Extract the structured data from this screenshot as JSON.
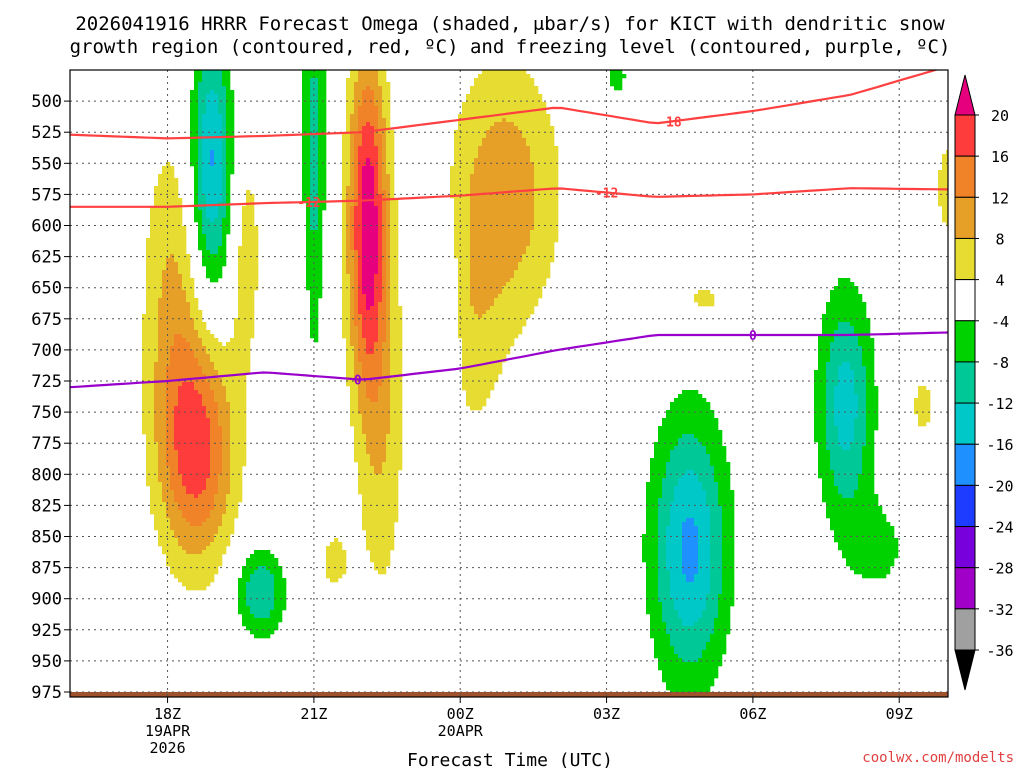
{
  "chart_data": {
    "type": "heatmap",
    "title_line1": "2026041916 HRRR Forecast Omega (shaded, μbar/s) for KICT with dendritic snow",
    "title_line2": "growth region (contoured, red, ºC) and freezing level (contoured, purple, ºC)",
    "xlabel": "Forecast Time (UTC)",
    "credit": "coolwx.com/modelts",
    "y_axis": {
      "unit": "hPa",
      "range": [
        975,
        475
      ],
      "inverted": true,
      "ticks": [
        500,
        525,
        550,
        575,
        600,
        625,
        650,
        675,
        700,
        725,
        750,
        775,
        800,
        825,
        850,
        875,
        900,
        925,
        950,
        975
      ]
    },
    "x_axis": {
      "unit": "hours after 2026-04-19 16Z",
      "range": [
        0,
        18
      ],
      "ticks": [
        {
          "hour": 2,
          "line1": "18Z",
          "line2": "19APR",
          "line3": "2026"
        },
        {
          "hour": 5,
          "line1": "21Z",
          "line2": "",
          "line3": ""
        },
        {
          "hour": 8,
          "line1": "00Z",
          "line2": "20APR",
          "line3": ""
        },
        {
          "hour": 11,
          "line1": "03Z",
          "line2": "",
          "line3": ""
        },
        {
          "hour": 14,
          "line1": "06Z",
          "line2": "",
          "line3": ""
        },
        {
          "hour": 17,
          "line1": "09Z",
          "line2": "",
          "line3": ""
        }
      ]
    },
    "colorbar": {
      "levels": [
        20,
        16,
        12,
        8,
        4,
        -4,
        -8,
        -12,
        -16,
        -20,
        -24,
        -28,
        -32,
        -36
      ],
      "bins": [
        {
          "range": [
            20,
            99
          ],
          "color": "#e6007e"
        },
        {
          "range": [
            16,
            20
          ],
          "color": "#ff3c3c"
        },
        {
          "range": [
            12,
            16
          ],
          "color": "#f08228"
        },
        {
          "range": [
            8,
            12
          ],
          "color": "#e6a028"
        },
        {
          "range": [
            4,
            8
          ],
          "color": "#e6dc32"
        },
        {
          "range": [
            -4,
            4
          ],
          "color": "#ffffff"
        },
        {
          "range": [
            -8,
            -4
          ],
          "color": "#00d200"
        },
        {
          "range": [
            -12,
            -8
          ],
          "color": "#00c896"
        },
        {
          "range": [
            -16,
            -12
          ],
          "color": "#00c8c8"
        },
        {
          "range": [
            -20,
            -16
          ],
          "color": "#1e90ff"
        },
        {
          "range": [
            -24,
            -20
          ],
          "color": "#1e3cff"
        },
        {
          "range": [
            -28,
            -24
          ],
          "color": "#7800dc"
        },
        {
          "range": [
            -32,
            -28
          ],
          "color": "#a000c8"
        },
        {
          "range": [
            -36,
            -32
          ],
          "color": "#a0a0a0"
        },
        {
          "range": [
            -99,
            -36
          ],
          "color": "#000000"
        }
      ]
    },
    "omega_features": [
      {
        "hour": 2.6,
        "p": 780,
        "sx": 0.55,
        "sp": 65,
        "amp": 18
      },
      {
        "hour": 2.1,
        "p": 650,
        "sx": 0.45,
        "sp": 90,
        "amp": 8
      },
      {
        "hour": 3.6,
        "p": 620,
        "sx": 0.25,
        "sp": 70,
        "amp": 6
      },
      {
        "hour": 6.1,
        "p": 595,
        "sx": 0.28,
        "sp": 95,
        "amp": 22
      },
      {
        "hour": 6.4,
        "p": 760,
        "sx": 0.35,
        "sp": 110,
        "amp": 7
      },
      {
        "hour": 8.9,
        "p": 575,
        "sx": 0.8,
        "sp": 75,
        "amp": 11
      },
      {
        "hour": 8.2,
        "p": 700,
        "sx": 0.5,
        "sp": 60,
        "amp": 5
      },
      {
        "hour": 5.4,
        "p": 870,
        "sx": 0.3,
        "sp": 25,
        "amp": 5
      },
      {
        "hour": 4.9,
        "p": 650,
        "sx": 0.4,
        "sp": 70,
        "amp": 3
      },
      {
        "hour": 17.5,
        "p": 745,
        "sx": 0.25,
        "sp": 25,
        "amp": 5
      },
      {
        "hour": 13.0,
        "p": 660,
        "sx": 0.4,
        "sp": 14,
        "amp": 5
      },
      {
        "hour": 18.0,
        "p": 570,
        "sx": 0.2,
        "sp": 35,
        "amp": 6
      },
      {
        "hour": 2.9,
        "p": 550,
        "sx": 0.3,
        "sp": 75,
        "amp": -17
      },
      {
        "hour": 5.0,
        "p": 570,
        "sx": 0.18,
        "sp": 120,
        "amp": -11
      },
      {
        "hour": 3.9,
        "p": 895,
        "sx": 0.35,
        "sp": 25,
        "amp": -12
      },
      {
        "hour": 12.7,
        "p": 860,
        "sx": 0.55,
        "sp": 75,
        "amp": -17
      },
      {
        "hour": 15.9,
        "p": 745,
        "sx": 0.4,
        "sp": 65,
        "amp": -14
      },
      {
        "hour": 7.8,
        "p": 725,
        "sx": 0.14,
        "sp": 75,
        "amp": -7
      },
      {
        "hour": 16.6,
        "p": 860,
        "sx": 0.5,
        "sp": 30,
        "amp": -5
      },
      {
        "hour": 11.2,
        "p": 480,
        "sx": 0.25,
        "sp": 18,
        "amp": -5
      }
    ],
    "contours": [
      {
        "name": "-18",
        "label": "-18",
        "color": "#ff4040",
        "hours": [
          0,
          2,
          4,
          6,
          8,
          10,
          12,
          14,
          16,
          18
        ],
        "p": [
          527,
          530,
          528,
          525,
          515,
          505,
          518,
          508,
          495,
          472
        ],
        "label_hour": 12.3
      },
      {
        "name": "-12",
        "label": "-12",
        "color": "#ff4040",
        "hours": [
          0,
          2,
          4,
          6,
          8,
          10,
          12,
          14,
          16,
          18
        ],
        "p": [
          585,
          585,
          582,
          580,
          576,
          570,
          577,
          575,
          570,
          571
        ],
        "label_hour": 4.9,
        "label_hour2": 11.0
      },
      {
        "name": "0",
        "label": "0",
        "color": "#9900cc",
        "hours": [
          0,
          2,
          4,
          6,
          8,
          10,
          12,
          14,
          16,
          18
        ],
        "p": [
          730,
          725,
          718,
          724,
          715,
          700,
          688,
          688,
          688,
          686
        ],
        "label_hour": 5.9,
        "label_hour2": 14.0
      }
    ],
    "ground": {
      "p": 975,
      "color": "#a0522d"
    }
  }
}
